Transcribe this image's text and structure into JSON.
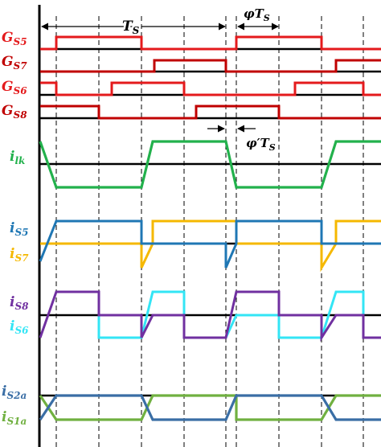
{
  "annotations": {
    "ts_main": "T",
    "ts_main_sub": "S",
    "phi_ts": "φT",
    "phi_ts_sub": "S",
    "phi_prime_ts": "φ′T",
    "phi_prime_ts_sub": "S"
  },
  "signals": {
    "gs5": {
      "main": "G",
      "sub": "S5",
      "color": "#e41a1c"
    },
    "gs7": {
      "main": "G",
      "sub": "S7",
      "color": "#c00000"
    },
    "gs6": {
      "main": "G",
      "sub": "S6",
      "color": "#e41a1c"
    },
    "gs8": {
      "main": "G",
      "sub": "S8",
      "color": "#c00000"
    },
    "ilk": {
      "main": "i",
      "sub": "lk",
      "color": "#22b14c"
    },
    "is5": {
      "main": "i",
      "sub": "S5",
      "color": "#1f77b4"
    },
    "is7": {
      "main": "i",
      "sub": "S7",
      "color": "#f5b800"
    },
    "is8": {
      "main": "i",
      "sub": "S8",
      "color": "#7030a0"
    },
    "is6": {
      "main": "i",
      "sub": "S6",
      "color": "#33e5f5"
    },
    "is2a": {
      "main": "i",
      "sub": "S2a",
      "color": "#3a6ea5"
    },
    "is1a": {
      "main": "i",
      "sub": "S1a",
      "color": "#70b040"
    }
  }
}
